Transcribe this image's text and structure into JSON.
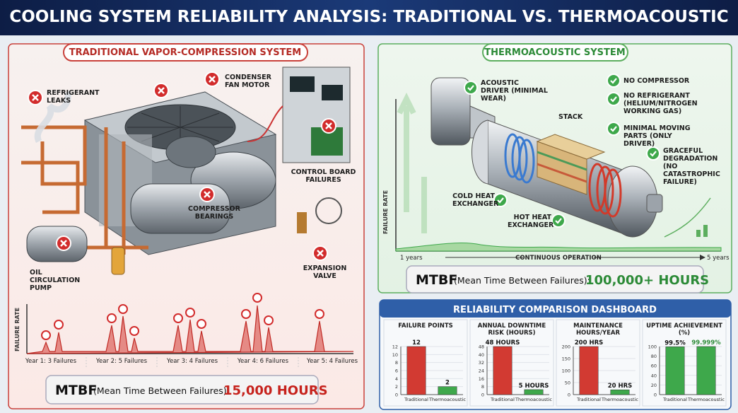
{
  "header": {
    "title": "COOLING SYSTEM RELIABILITY ANALYSIS: TRADITIONAL VS. THERMOACOUSTIC"
  },
  "traditional": {
    "title": "TRADITIONAL VAPOR-COMPRESSION SYSTEM",
    "failure_points": [
      "REFRIGERANT LEAKS",
      "CONDENSER FAN MOTOR",
      "CONTROL BOARD FAILURES",
      "COMPRESSOR BEARINGS",
      "OIL CIRCULATION PUMP",
      "EXPANSION VALVE"
    ],
    "timeline": {
      "axis_label": "FAILURE RATE",
      "years": [
        "Year 1: 3 Failures",
        "Year 2: 5 Failures",
        "Year 3: 4 Failures",
        "Year 4: 6 Failures",
        "Year 5: 4 Failures"
      ]
    },
    "mtbf": {
      "label": "MTBF",
      "description": "(Mean Time Between Failures):",
      "value": "15,000 HOURS"
    }
  },
  "thermoacoustic": {
    "title": "THERMOACOUSTIC SYSTEM",
    "components": [
      "ACOUSTIC DRIVER (MINIMAL WEAR)",
      "STACK",
      "COLD HEAT EXCHANGER",
      "HOT HEAT EXCHANGER"
    ],
    "benefits": [
      "NO COMPRESSOR",
      "NO REFRIGERANT (HELIUM/NITROGEN WORKING GAS)",
      "MINIMAL MOVING PARTS (ONLY DRIVER)",
      "GRACEFUL DEGRADATION (NO CATASTROPHIC FAILURE)"
    ],
    "timeline": {
      "axis_label": "FAILURE RATE",
      "start": "1 years",
      "middle": "CONTINUOUS OPERATION",
      "end": "5 years"
    },
    "mtbf": {
      "label": "MTBF",
      "description": "(Mean Time Between Failures):",
      "value": "100,000+ HOURS"
    }
  },
  "dashboard": {
    "title": "RELIABILITY COMPARISON DASHBOARD",
    "charts": [
      {
        "type": "bar",
        "title": "FAILURE POINTS",
        "categories": [
          "Traditional",
          "Thermoacoustic"
        ],
        "values": [
          12,
          2
        ],
        "colors": [
          "#d23a32",
          "#3ea84b"
        ],
        "ylim": [
          0,
          12
        ],
        "yticks": [
          0,
          2,
          4,
          6,
          8,
          10,
          12
        ]
      },
      {
        "type": "bar",
        "title": "ANNUAL DOWNTIME RISK (HOURS)",
        "categories": [
          "Traditional",
          "Thermoacoustic"
        ],
        "values": [
          48,
          5
        ],
        "value_labels": [
          "48 HOURS",
          "5 HOURS"
        ],
        "colors": [
          "#d23a32",
          "#3ea84b"
        ],
        "ylim": [
          0,
          48
        ],
        "yticks": [
          0,
          8,
          16,
          24,
          32,
          40,
          48
        ]
      },
      {
        "type": "bar",
        "title": "MAINTENANCE HOURS/YEAR",
        "categories": [
          "Traditional",
          "Thermoacoustic"
        ],
        "values": [
          200,
          20
        ],
        "value_labels": [
          "200 HRS",
          "20 HRS"
        ],
        "colors": [
          "#d23a32",
          "#3ea84b"
        ],
        "ylim": [
          0,
          200
        ],
        "yticks": [
          0,
          50,
          100,
          150,
          200
        ]
      },
      {
        "type": "bar",
        "title": "UPTIME ACHIEVEMENT (%)",
        "categories": [
          "Traditional",
          "Thermoacoustic"
        ],
        "values": [
          99.5,
          99.999
        ],
        "value_labels": [
          "99.5%",
          "99.999%"
        ],
        "colors": [
          "#3ea84b",
          "#3ea84b"
        ],
        "ylim": [
          0,
          100
        ],
        "yticks": [
          0,
          20,
          40,
          60,
          80,
          100
        ]
      }
    ]
  }
}
